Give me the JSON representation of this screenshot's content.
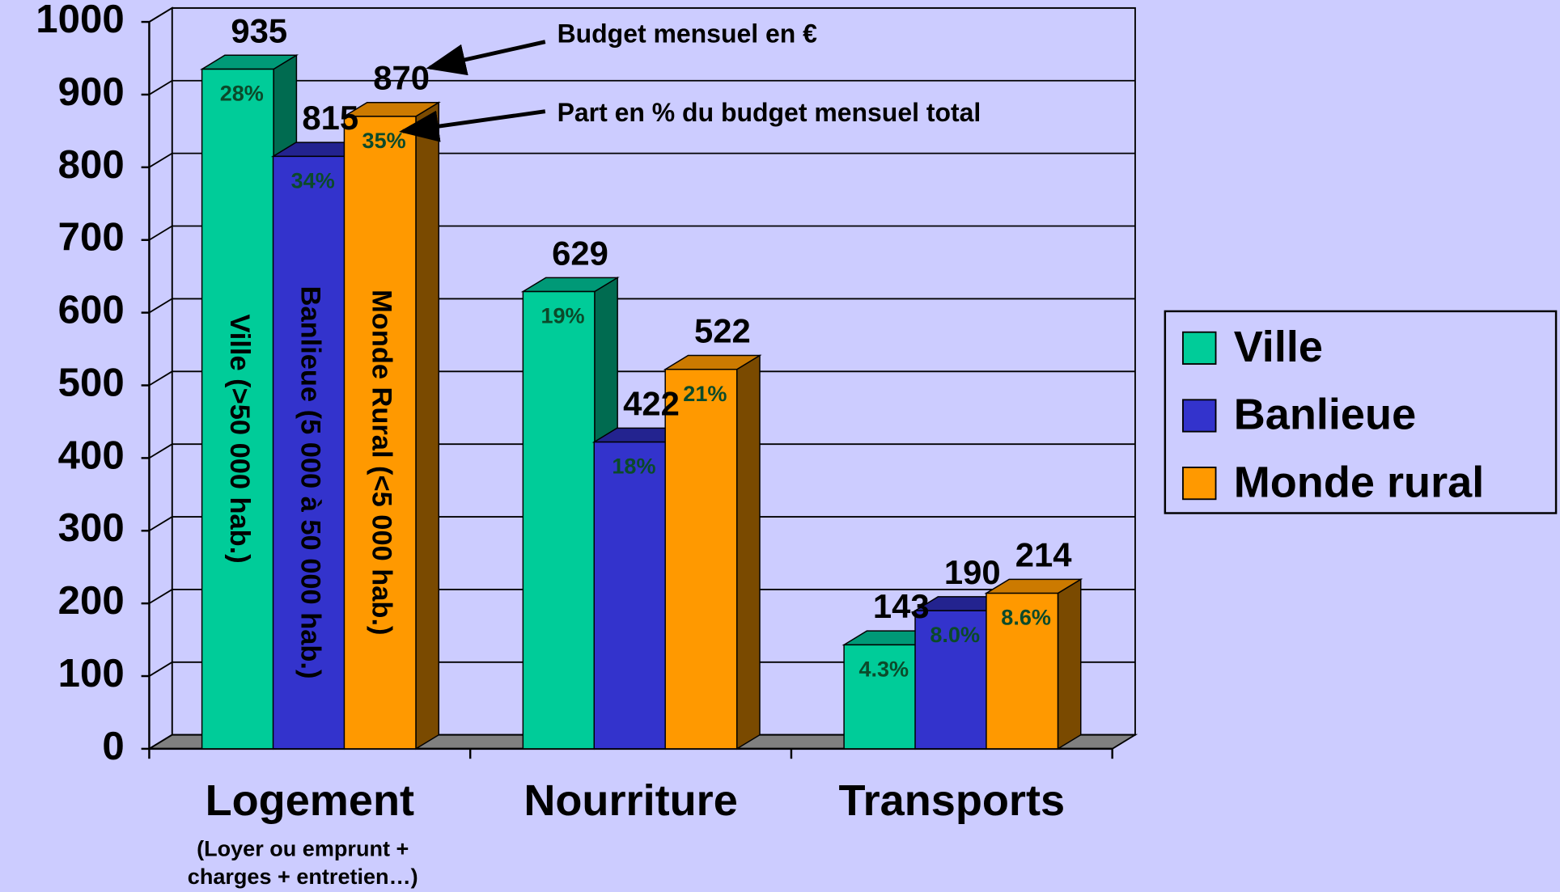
{
  "chart_data": {
    "type": "bar3d",
    "categories": [
      "Logement",
      "Nourriture",
      "Transports"
    ],
    "category_notes": [
      [
        "(Loyer ou emprunt +",
        "charges + entretien…)"
      ],
      null,
      null
    ],
    "series": [
      {
        "name": "Ville",
        "color": "#00cc99",
        "top_color": "#009977",
        "side_color": "#006b50",
        "inner_label": "Ville (>50 000 hab.)",
        "values": [
          935,
          629,
          143
        ],
        "shares": [
          28,
          19,
          4.3
        ],
        "share_labels": [
          "28%",
          "19%",
          "4.3%"
        ]
      },
      {
        "name": "Banlieue",
        "color": "#3333cc",
        "top_color": "#23238f",
        "side_color": "#1a1a6b",
        "inner_label": "Banlieue (5 000 à 50 000 hab.)",
        "values": [
          815,
          422,
          190
        ],
        "shares": [
          34,
          18,
          8.0
        ],
        "share_labels": [
          "34%",
          "18%",
          "8.0%"
        ]
      },
      {
        "name": "Monde rural",
        "color": "#ff9900",
        "top_color": "#cc7a00",
        "side_color": "#7a4a00",
        "inner_label": "Monde Rural (<5 000 hab.)",
        "values": [
          870,
          522,
          214
        ],
        "shares": [
          35,
          21,
          8.6
        ],
        "share_labels": [
          "35%",
          "21%",
          "8.6%"
        ]
      }
    ],
    "ylim": [
      0,
      1000
    ],
    "yticks": [
      0,
      100,
      200,
      300,
      400,
      500,
      600,
      700,
      800,
      900,
      1000
    ],
    "grid": true,
    "legend": "right",
    "annotations": [
      "Budget mensuel en €",
      "Part en % du budget mensuel total"
    ]
  }
}
